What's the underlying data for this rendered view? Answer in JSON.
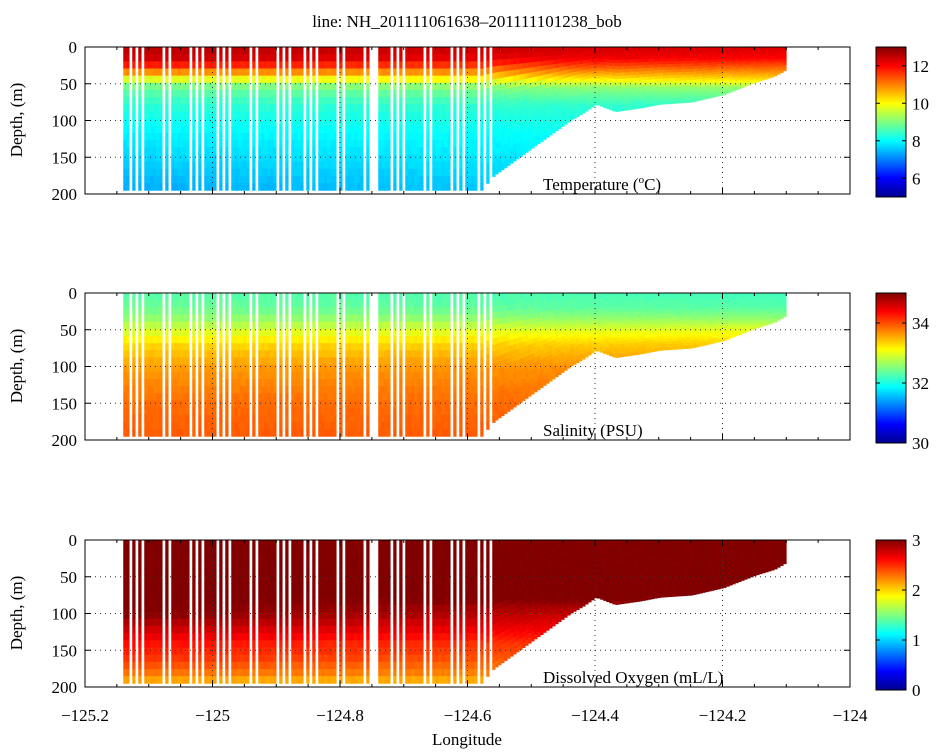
{
  "chart_data": {
    "type": "heatmap",
    "title": "line: NH_201111061638–201111101238_bob",
    "xlabel": "Longitude",
    "xlim": [
      -125.2,
      -124.0
    ],
    "xticks": [
      -125.2,
      -125.0,
      -124.8,
      -124.6,
      -124.4,
      -124.2,
      -124.0
    ],
    "xtick_labels": [
      "−125.2",
      "−125",
      "−124.8",
      "−124.6",
      "−124.4",
      "−124.2",
      "−124"
    ],
    "grid": "dotted",
    "section": {
      "lon_range": [
        -125.14,
        -124.1
      ],
      "max_depth_offshore": 195,
      "bottom_profile": [
        [
          -124.58,
          195
        ],
        [
          -124.56,
          175
        ],
        [
          -124.52,
          150
        ],
        [
          -124.48,
          125
        ],
        [
          -124.44,
          100
        ],
        [
          -124.42,
          90
        ],
        [
          -124.4,
          78
        ],
        [
          -124.37,
          88
        ],
        [
          -124.33,
          83
        ],
        [
          -124.3,
          78
        ],
        [
          -124.25,
          75
        ],
        [
          -124.2,
          65
        ],
        [
          -124.15,
          48
        ],
        [
          -124.12,
          40
        ],
        [
          -124.1,
          30
        ]
      ],
      "gaps": [
        [
          -124.757,
          -124.748
        ],
        [
          -124.568,
          -124.563
        ]
      ],
      "offshore_cast_spacing": 0.0105
    },
    "panels": [
      {
        "variable": "temperature",
        "label": "Temperature (°C)",
        "label_text": "Temperature (",
        "label_sup": "o",
        "label_unit": "C)",
        "ylabel": "Depth, (m)",
        "ylim": [
          0,
          200
        ],
        "yticks": [
          0,
          50,
          100,
          150,
          200
        ],
        "colorbar": {
          "min": 5,
          "max": 13,
          "ticks": [
            6,
            8,
            10,
            12
          ]
        },
        "profile_depths": [
          0,
          15,
          25,
          35,
          45,
          55,
          80,
          120,
          160,
          200
        ],
        "offshore_values": [
          12.6,
          12.4,
          11.8,
          10.8,
          9.6,
          8.8,
          8.3,
          7.9,
          7.6,
          7.3
        ],
        "inshore_values": [
          12.3,
          12.0,
          11.4,
          10.8,
          10.2,
          9.2,
          8.4,
          8.1,
          7.9,
          7.7
        ]
      },
      {
        "variable": "salinity",
        "label": "Salinity (PSU)",
        "ylabel": "Depth, (m)",
        "ylim": [
          0,
          200
        ],
        "yticks": [
          0,
          50,
          100,
          150,
          200
        ],
        "colorbar": {
          "min": 30,
          "max": 35,
          "ticks": [
            30,
            32,
            34
          ]
        },
        "profile_depths": [
          0,
          20,
          35,
          50,
          70,
          100,
          150,
          200
        ],
        "offshore_values": [
          32.3,
          32.4,
          32.6,
          32.9,
          33.3,
          33.6,
          33.85,
          33.95
        ],
        "inshore_values": [
          32.2,
          32.3,
          32.6,
          33.0,
          33.4,
          33.7,
          33.85,
          33.95
        ]
      },
      {
        "variable": "oxygen",
        "label": "Dissolved Oxygen (mL/L)",
        "ylabel": "Depth, (m)",
        "ylim": [
          0,
          200
        ],
        "yticks": [
          0,
          50,
          100,
          150,
          200
        ],
        "colorbar": {
          "min": 0,
          "max": 3,
          "ticks": [
            0,
            1,
            2,
            3
          ]
        },
        "profile_depths": [
          0,
          80,
          100,
          120,
          140,
          160,
          180,
          200
        ],
        "offshore_values": [
          3.0,
          3.0,
          3.0,
          2.8,
          2.6,
          2.5,
          2.3,
          2.0
        ],
        "inshore_values": [
          3.0,
          3.0,
          2.7,
          2.6,
          2.4,
          2.3,
          2.2,
          2.0
        ]
      }
    ]
  }
}
